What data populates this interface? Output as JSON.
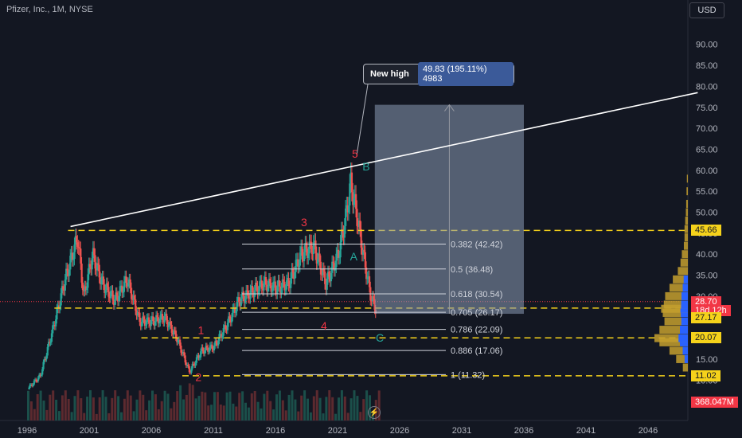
{
  "symbol_title": "Pfizer, Inc., 1M, NYSE",
  "currency": "USD",
  "chart_data": {
    "type": "candlestick",
    "x_ticks": [
      "1996",
      "2001",
      "2006",
      "2011",
      "2016",
      "2021",
      "2026",
      "2031",
      "2036",
      "2041",
      "2046"
    ],
    "y_ticks": [
      "5.00",
      "10.00",
      "15.00",
      "20.00",
      "25.00",
      "30.00",
      "35.00",
      "40.00",
      "45.00",
      "50.00",
      "55.00",
      "60.00",
      "65.00",
      "70.00",
      "75.00",
      "80.00",
      "85.00",
      "90.00"
    ],
    "ylim": [
      2,
      92
    ],
    "price_series": [
      [
        1996.0,
        8
      ],
      [
        1997.0,
        11
      ],
      [
        1998.0,
        22
      ],
      [
        1999.0,
        34
      ],
      [
        2000.0,
        44
      ],
      [
        2000.5,
        30
      ],
      [
        2001.2,
        40
      ],
      [
        2002.0,
        33
      ],
      [
        2003.0,
        29
      ],
      [
        2004.0,
        34
      ],
      [
        2005.0,
        24
      ],
      [
        2006.0,
        24
      ],
      [
        2007.0,
        25
      ],
      [
        2008.0,
        20
      ],
      [
        2009.0,
        12
      ],
      [
        2010.0,
        17
      ],
      [
        2011.0,
        18
      ],
      [
        2012.0,
        23
      ],
      [
        2013.0,
        29
      ],
      [
        2014.0,
        31
      ],
      [
        2015.0,
        33
      ],
      [
        2016.0,
        32
      ],
      [
        2017.0,
        33
      ],
      [
        2018.0,
        40
      ],
      [
        2019.0,
        42
      ],
      [
        2020.0,
        33
      ],
      [
        2021.0,
        40
      ],
      [
        2021.6,
        49
      ],
      [
        2022.0,
        57
      ],
      [
        2022.5,
        49
      ],
      [
        2023.0,
        40
      ],
      [
        2023.6,
        30
      ],
      [
        2024.0,
        27
      ]
    ],
    "price_range": [
      5,
      62
    ],
    "fibonacci_levels": [
      {
        "ratio": "0.382",
        "price": 42.42,
        "label": "0.382 (42.42)"
      },
      {
        "ratio": "0.5",
        "price": 36.48,
        "label": "0.5 (36.48)"
      },
      {
        "ratio": "0.618",
        "price": 30.54,
        "label": "0.618 (30.54)"
      },
      {
        "ratio": "0.705",
        "price": 26.17,
        "label": "0.705 (26.17)"
      },
      {
        "ratio": "0.786",
        "price": 22.09,
        "label": "0.786 (22.09)"
      },
      {
        "ratio": "0.886",
        "price": 17.06,
        "label": "0.886 (17.06)"
      },
      {
        "ratio": "1",
        "price": 11.32,
        "label": "1 (11.32)"
      }
    ],
    "support_resistance_levels": [
      45.66,
      27.17,
      20.07,
      11.02
    ],
    "price_tags": [
      {
        "value": "45.66",
        "price": 45.66,
        "style": "yellow"
      },
      {
        "value": "28.70",
        "price": 28.7,
        "style": "red"
      },
      {
        "value": "18d 12h",
        "price": 26.6,
        "style": "red"
      },
      {
        "value": "27.17",
        "price": 24.9,
        "style": "yellow"
      },
      {
        "value": "20.07",
        "price": 20.07,
        "style": "yellow"
      },
      {
        "value": "11.02",
        "price": 11.02,
        "style": "yellow"
      }
    ],
    "current_price": 28.7,
    "countdown": "18d 12h",
    "volume_tag": "368.047M",
    "trendline": {
      "from": [
        1999.5,
        46.6
      ],
      "to": [
        2050,
        78.5
      ]
    },
    "projection": {
      "price_gain": "49.83 (195.11%) 4983",
      "label": "New high",
      "x_start": 2024.0,
      "x_end": 2036.0,
      "y_top": 75.6,
      "y_bottom": 25.8
    },
    "wave_labels": [
      {
        "text": "1",
        "x": 2010,
        "y": 21.0,
        "color": "#f23645"
      },
      {
        "text": "2",
        "x": 2009.8,
        "y": 9.8,
        "color": "#f23645"
      },
      {
        "text": "3",
        "x": 2018.3,
        "y": 46.7,
        "color": "#f23645"
      },
      {
        "text": "4",
        "x": 2019.9,
        "y": 22.0,
        "color": "#f23645"
      },
      {
        "text": "5",
        "x": 2022.4,
        "y": 63.0,
        "color": "#f23645"
      },
      {
        "text": "A",
        "x": 2022.3,
        "y": 38.5,
        "color": "#26a69a"
      },
      {
        "text": "B",
        "x": 2023.3,
        "y": 60.0,
        "color": "#26a69a"
      },
      {
        "text": "C",
        "x": 2024.4,
        "y": 19.2,
        "color": "#26a69a"
      }
    ],
    "volume_profile": [
      [
        13,
        0.15
      ],
      [
        15,
        0.35
      ],
      [
        17,
        0.55
      ],
      [
        19,
        0.85
      ],
      [
        20,
        1.0
      ],
      [
        22,
        0.85
      ],
      [
        24,
        0.7
      ],
      [
        26,
        0.75
      ],
      [
        27,
        0.8
      ],
      [
        28,
        0.72
      ],
      [
        30,
        0.68
      ],
      [
        32,
        0.55
      ],
      [
        34,
        0.45
      ],
      [
        36,
        0.3
      ],
      [
        38,
        0.22
      ],
      [
        40,
        0.18
      ],
      [
        42,
        0.12
      ],
      [
        44,
        0.1
      ],
      [
        46,
        0.1
      ],
      [
        48,
        0.08
      ],
      [
        50,
        0.06
      ],
      [
        52,
        0.05
      ],
      [
        55,
        0.04
      ],
      [
        58,
        0.03
      ]
    ]
  }
}
